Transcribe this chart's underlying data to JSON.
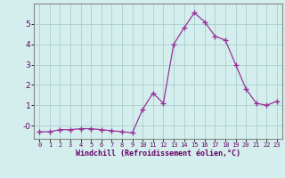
{
  "x": [
    0,
    1,
    2,
    3,
    4,
    5,
    6,
    7,
    8,
    9,
    10,
    11,
    12,
    13,
    14,
    15,
    16,
    17,
    18,
    19,
    20,
    21,
    22,
    23
  ],
  "y": [
    -0.3,
    -0.3,
    -0.2,
    -0.2,
    -0.15,
    -0.15,
    -0.2,
    -0.25,
    -0.3,
    -0.35,
    0.8,
    1.6,
    1.1,
    4.0,
    4.8,
    5.55,
    5.1,
    4.4,
    4.2,
    3.0,
    1.8,
    1.1,
    1.0,
    1.2
  ],
  "line_color": "#993399",
  "marker": "+",
  "marker_size": 4,
  "background_color": "#d4eeed",
  "grid_color": "#aacece",
  "xlabel": "Windchill (Refroidissement éolien,°C)",
  "ytick_labels": [
    "-0",
    "1",
    "2",
    "3",
    "4",
    "5"
  ],
  "ytick_values": [
    0,
    1,
    2,
    3,
    4,
    5
  ],
  "xlim": [
    -0.5,
    23.5
  ],
  "ylim": [
    -0.65,
    6.0
  ]
}
